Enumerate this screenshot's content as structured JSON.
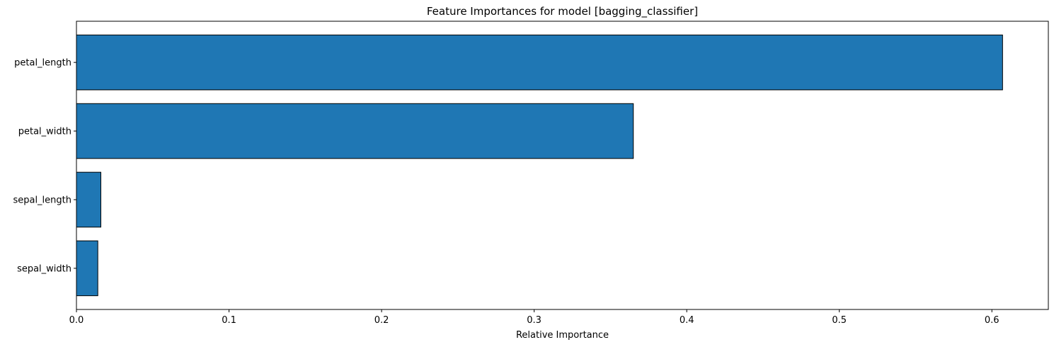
{
  "chart_data": {
    "type": "bar",
    "orientation": "horizontal",
    "title": "Feature Importances for model [bagging_classifier]",
    "xlabel": "Relative Importance",
    "ylabel": "",
    "categories": [
      "petal_length",
      "petal_width",
      "sepal_length",
      "sepal_width"
    ],
    "values": [
      0.607,
      0.365,
      0.016,
      0.014
    ],
    "xlim": [
      0,
      0.637
    ],
    "xticks": [
      0.0,
      0.1,
      0.2,
      0.3,
      0.4,
      0.5,
      0.6
    ],
    "xtick_labels": [
      "0.0",
      "0.1",
      "0.2",
      "0.3",
      "0.4",
      "0.5",
      "0.6"
    ],
    "grid": false,
    "legend": "none",
    "bar_color": "#1f77b4",
    "edge_color": "#000000"
  }
}
